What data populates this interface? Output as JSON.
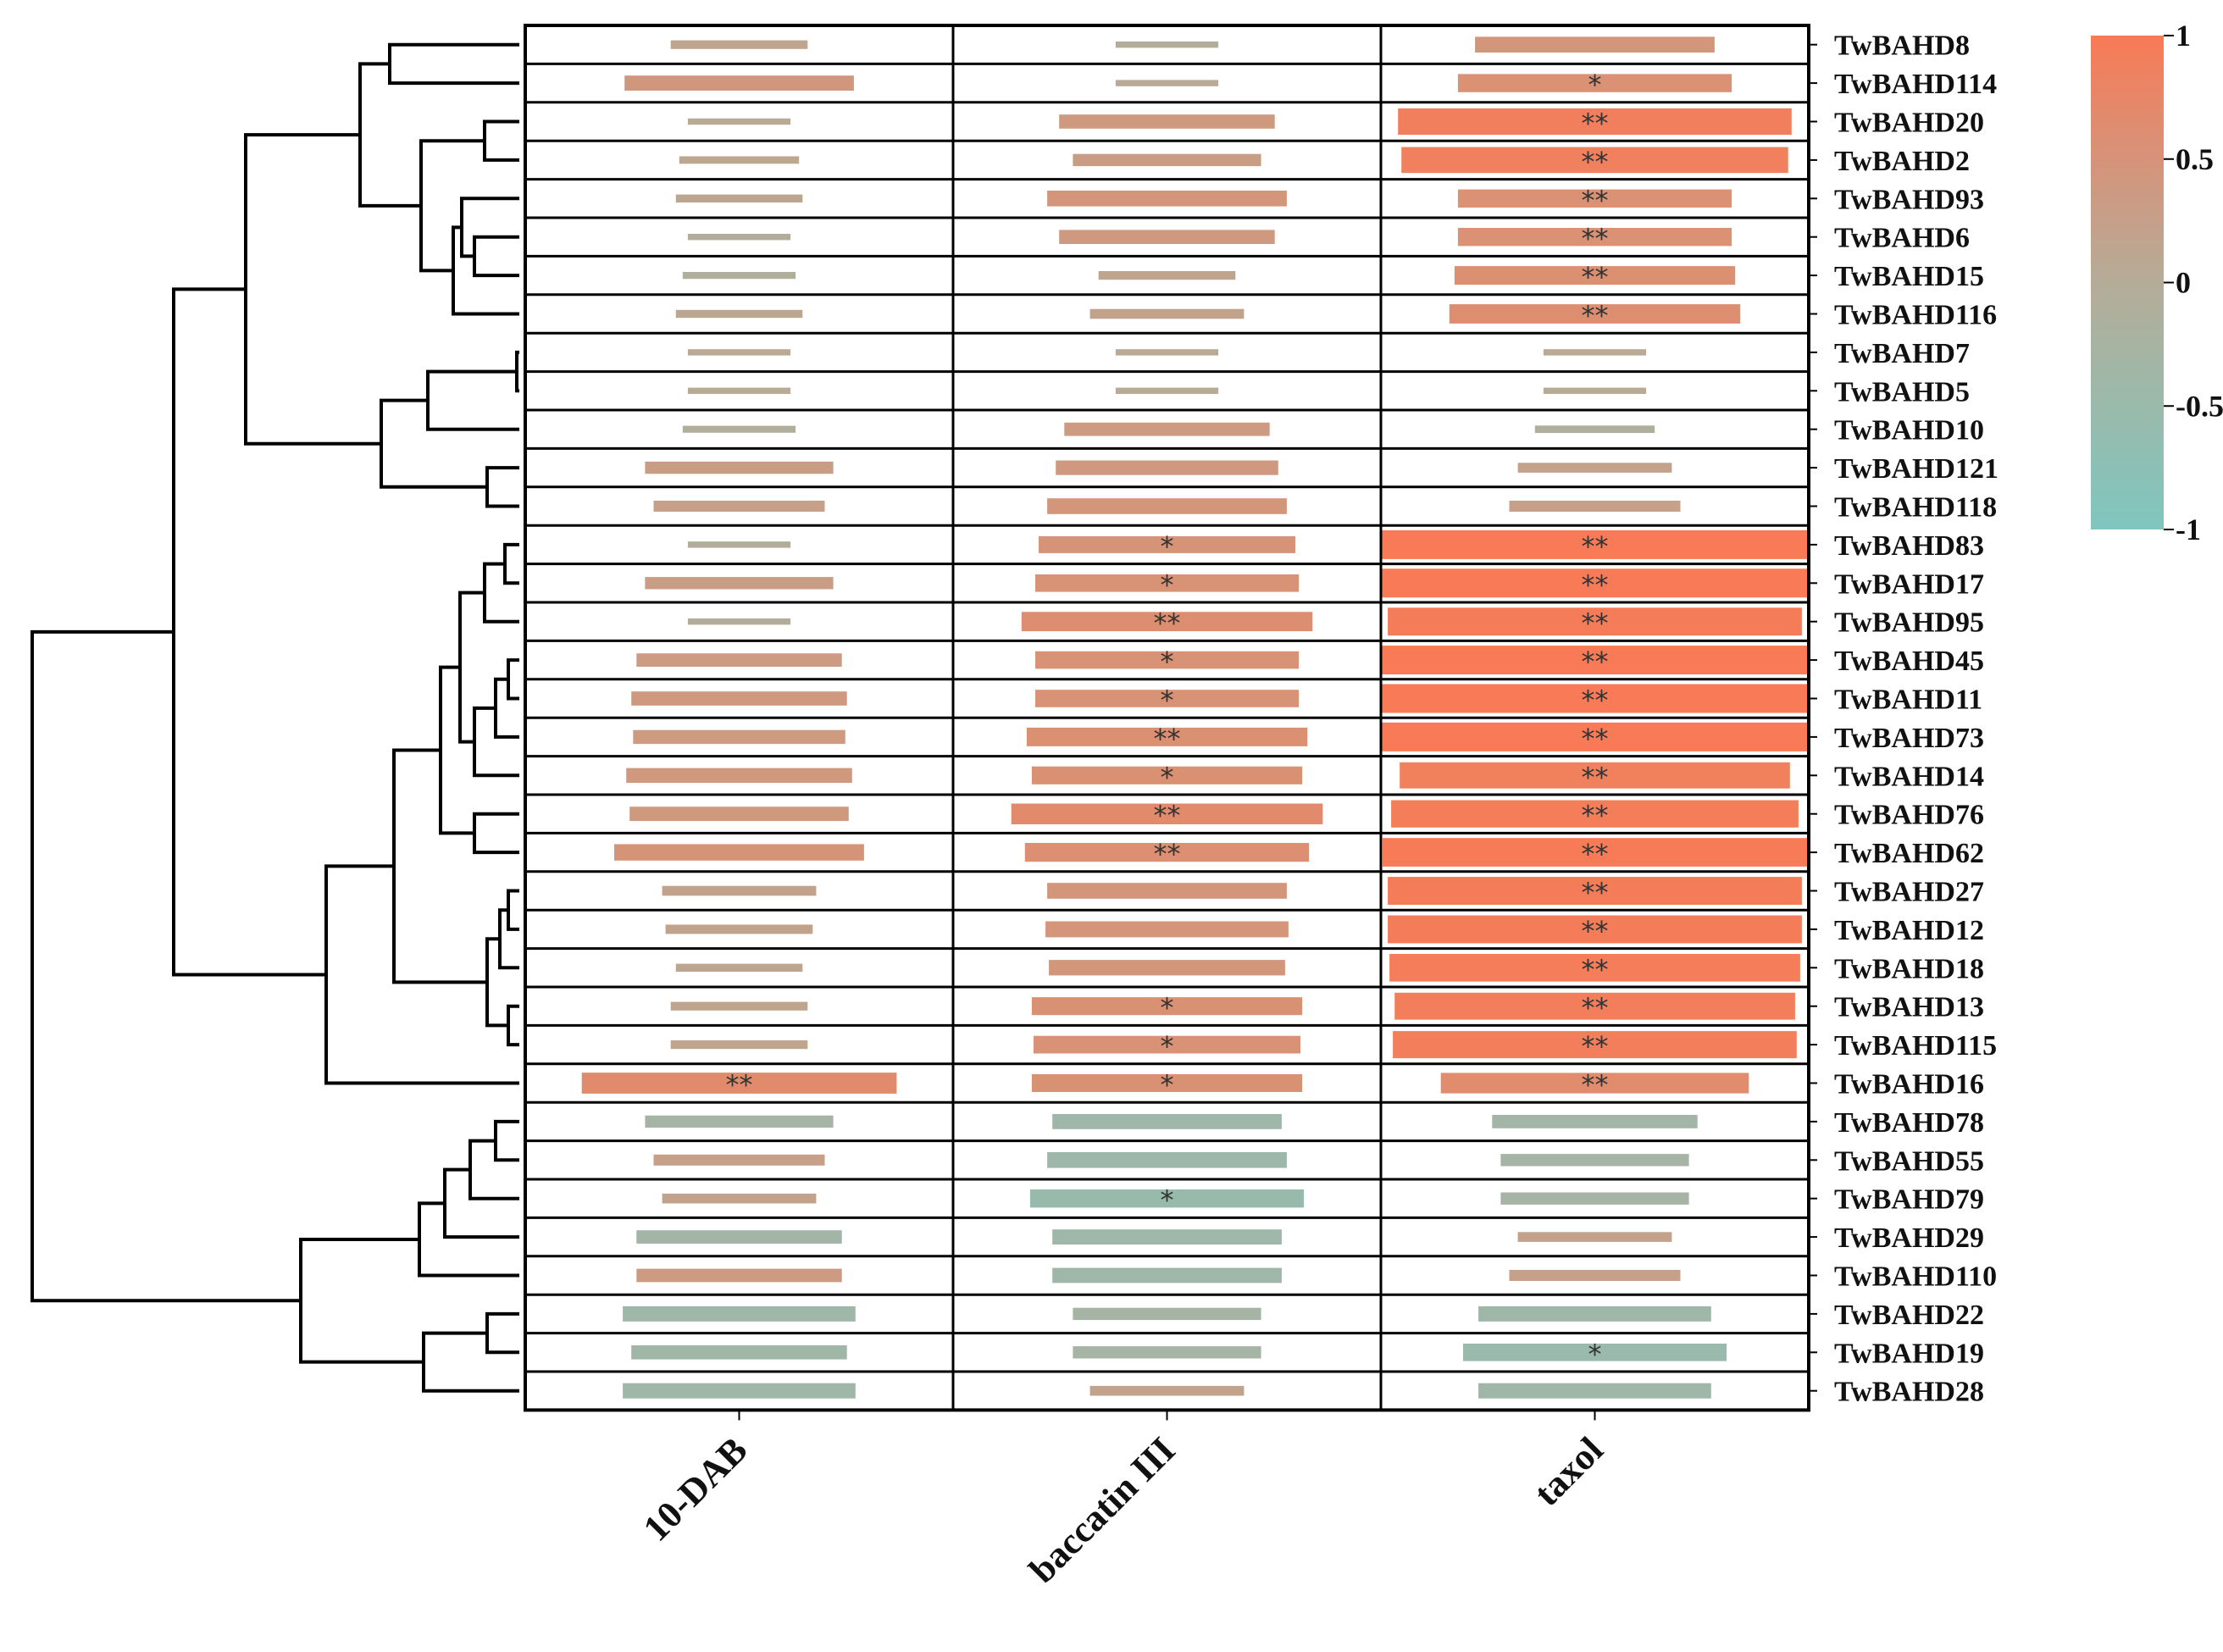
{
  "chart_data": {
    "type": "heatmap",
    "title": "",
    "columns": [
      "10-DAB",
      "baccatin III",
      "taxol"
    ],
    "rows": [
      "TwBAHD8",
      "TwBAHD114",
      "TwBAHD20",
      "TwBAHD2",
      "TwBAHD93",
      "TwBAHD6",
      "TwBAHD15",
      "TwBAHD116",
      "TwBAHD7",
      "TwBAHD5",
      "TwBAHD10",
      "TwBAHD121",
      "TwBAHD118",
      "TwBAHD83",
      "TwBAHD17",
      "TwBAHD95",
      "TwBAHD45",
      "TwBAHD11",
      "TwBAHD73",
      "TwBAHD14",
      "TwBAHD76",
      "TwBAHD62",
      "TwBAHD27",
      "TwBAHD12",
      "TwBAHD18",
      "TwBAHD13",
      "TwBAHD115",
      "TwBAHD16",
      "TwBAHD78",
      "TwBAHD55",
      "TwBAHD79",
      "TwBAHD29",
      "TwBAHD110",
      "TwBAHD22",
      "TwBAHD19",
      "TwBAHD28"
    ],
    "values": [
      [
        0.15,
        -0.05,
        0.45
      ],
      [
        0.42,
        0.05,
        0.55
      ],
      [
        0.05,
        0.38,
        0.9
      ],
      [
        0.1,
        0.3,
        0.88
      ],
      [
        0.12,
        0.45,
        0.55
      ],
      [
        -0.05,
        0.38,
        0.55
      ],
      [
        -0.08,
        0.15,
        0.57
      ],
      [
        0.12,
        0.2,
        0.6
      ],
      [
        0.05,
        0.05,
        0.05
      ],
      [
        0.05,
        0.05,
        0.05
      ],
      [
        -0.08,
        0.35,
        -0.1
      ],
      [
        0.3,
        0.4,
        0.2
      ],
      [
        0.25,
        0.45,
        0.25
      ],
      [
        -0.05,
        0.5,
        1.0
      ],
      [
        0.3,
        0.52,
        1.0
      ],
      [
        -0.05,
        0.6,
        0.96
      ],
      [
        0.35,
        0.52,
        1.0
      ],
      [
        0.38,
        0.52,
        1.0
      ],
      [
        0.37,
        0.57,
        1.0
      ],
      [
        0.41,
        0.54,
        0.89
      ],
      [
        0.39,
        0.66,
        0.94
      ],
      [
        0.48,
        0.58,
        0.99
      ],
      [
        0.2,
        0.45,
        0.96
      ],
      [
        0.18,
        0.46,
        0.96
      ],
      [
        0.12,
        0.44,
        0.95
      ],
      [
        0.15,
        0.54,
        0.92
      ],
      [
        0.15,
        0.53,
        0.93
      ],
      [
        0.67,
        0.54,
        0.65
      ],
      [
        -0.3,
        -0.42,
        -0.35
      ],
      [
        0.25,
        -0.45,
        -0.3
      ],
      [
        0.2,
        -0.55,
        -0.3
      ],
      [
        -0.35,
        -0.42,
        0.2
      ],
      [
        0.35,
        -0.42,
        0.25
      ],
      [
        -0.43,
        -0.3,
        -0.43
      ],
      [
        -0.38,
        -0.3,
        -0.52
      ],
      [
        -0.43,
        0.2,
        -0.43
      ]
    ],
    "significance": [
      [
        "",
        "",
        ""
      ],
      [
        "",
        "",
        "*"
      ],
      [
        "",
        "",
        "**"
      ],
      [
        "",
        "",
        "**"
      ],
      [
        "",
        "",
        "**"
      ],
      [
        "",
        "",
        "**"
      ],
      [
        "",
        "",
        "**"
      ],
      [
        "",
        "",
        "**"
      ],
      [
        "",
        "",
        ""
      ],
      [
        "",
        "",
        ""
      ],
      [
        "",
        "",
        ""
      ],
      [
        "",
        "",
        ""
      ],
      [
        "",
        "",
        ""
      ],
      [
        "",
        "*",
        "**"
      ],
      [
        "",
        "*",
        "**"
      ],
      [
        "",
        "**",
        "**"
      ],
      [
        "",
        "*",
        "**"
      ],
      [
        "",
        "*",
        "**"
      ],
      [
        "",
        "**",
        "**"
      ],
      [
        "",
        "*",
        "**"
      ],
      [
        "",
        "**",
        "**"
      ],
      [
        "",
        "**",
        "**"
      ],
      [
        "",
        "",
        "**"
      ],
      [
        "",
        "",
        "**"
      ],
      [
        "",
        "",
        "**"
      ],
      [
        "",
        "*",
        "**"
      ],
      [
        "",
        "*",
        "**"
      ],
      [
        "**",
        "*",
        "**"
      ],
      [
        "",
        "",
        ""
      ],
      [
        "",
        "",
        ""
      ],
      [
        "",
        "*",
        ""
      ],
      [
        "",
        "",
        ""
      ],
      [
        "",
        "",
        ""
      ],
      [
        "",
        "",
        ""
      ],
      [
        "",
        "",
        "*"
      ],
      [
        "",
        "",
        ""
      ]
    ],
    "colorbar": {
      "ticks": [
        "1",
        "0.5",
        "0",
        "-0.5",
        "-1"
      ],
      "range": [
        -1,
        1
      ],
      "colors": {
        "high": "#f87a56",
        "mid": "#b5ac98",
        "low": "#7fc6bf"
      }
    },
    "dendrogram": "left",
    "grid": true,
    "legend": "colorbar-right"
  }
}
